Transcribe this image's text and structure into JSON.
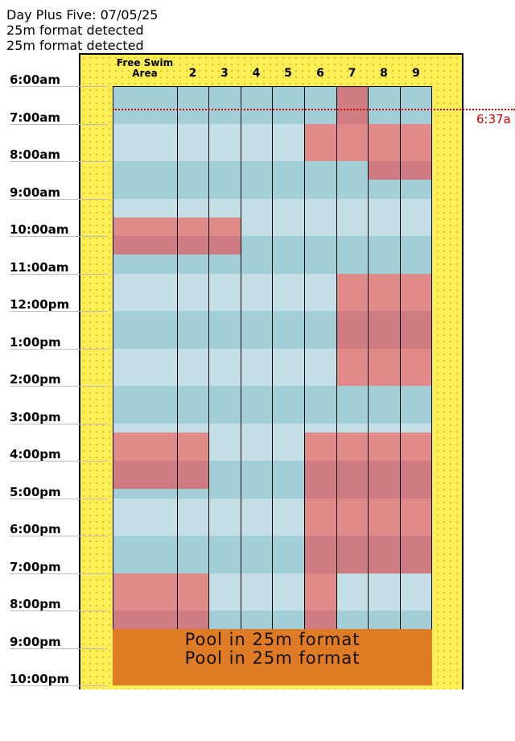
{
  "header": {
    "title": "Day Plus Five: 07/05/25",
    "notice_1": "25m format detected",
    "notice_2": "25m format detected"
  },
  "lanes": {
    "free_swim": "Free Swim\nArea",
    "numbers": [
      "2",
      "3",
      "4",
      "5",
      "6",
      "7",
      "8",
      "9"
    ]
  },
  "times": [
    "6:00am",
    "7:00am",
    "8:00am",
    "9:00am",
    "10:00am",
    "11:00am",
    "12:00pm",
    "1:00pm",
    "2:00pm",
    "3:00pm",
    "4:00pm",
    "5:00pm",
    "6:00pm",
    "7:00pm",
    "8:00pm",
    "9:00pm",
    "10:00pm"
  ],
  "now_marker": {
    "label": "6:37a",
    "time": "6:37am"
  },
  "banner": {
    "line_1": "Pool in 25m format",
    "line_2": "Pool in 25m format",
    "start": "8:30pm",
    "end": "10:00pm"
  },
  "colors": {
    "available": "#c4dfe6",
    "available_alt": "#a2ced8",
    "reserved": "#e08a8a",
    "reserved_alt": "#cf7b82",
    "banner": "#e07b25",
    "frame": "#ffee55",
    "now_marker": "#cc0000"
  },
  "reservations": [
    {
      "lanes": [
        7
      ],
      "start": "6:00am",
      "end": "7:00am"
    },
    {
      "lanes": [
        6,
        7,
        8,
        9
      ],
      "start": "7:00am",
      "end": "8:00am"
    },
    {
      "lanes": [
        8,
        9
      ],
      "start": "8:00am",
      "end": "8:30am"
    },
    {
      "lanes": [
        1,
        2,
        3
      ],
      "start": "9:30am",
      "end": "10:30am"
    },
    {
      "lanes": [
        7,
        8,
        9
      ],
      "start": "11:00am",
      "end": "2:00pm"
    },
    {
      "lanes": [
        1,
        2
      ],
      "start": "3:15pm",
      "end": "4:45pm"
    },
    {
      "lanes": [
        6,
        7,
        8,
        9
      ],
      "start": "3:15pm",
      "end": "7:00pm"
    },
    {
      "lanes": [
        1,
        2,
        6
      ],
      "start": "7:00pm",
      "end": "8:30pm"
    }
  ]
}
